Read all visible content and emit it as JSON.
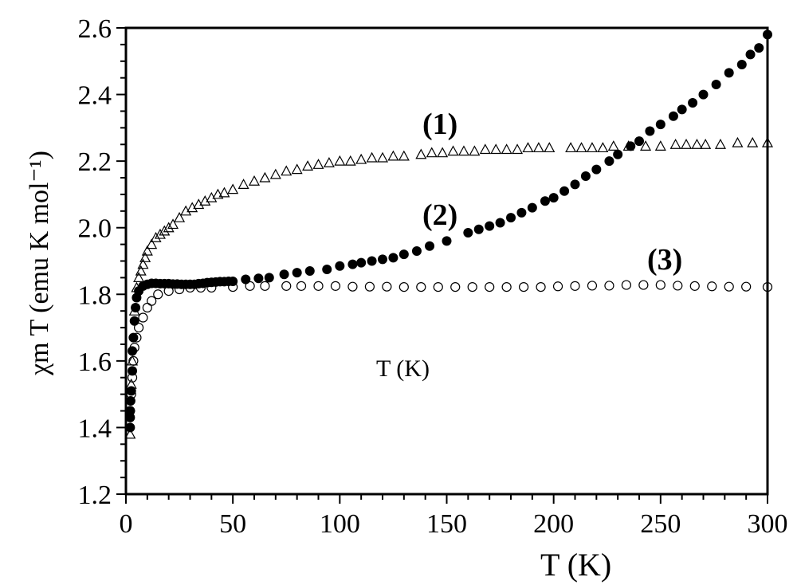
{
  "chart_data": {
    "type": "scatter",
    "title": "",
    "xlabel": "T (K)",
    "ylabel": "χm T (emu K mol⁻¹)",
    "xlim": [
      0,
      300
    ],
    "ylim": [
      1.2,
      2.6
    ],
    "xticks": [
      0,
      50,
      100,
      150,
      200,
      250,
      300
    ],
    "yticks": [
      1.2,
      1.4,
      1.6,
      1.8,
      2.0,
      2.2,
      2.4,
      2.6
    ],
    "ytick_labels": [
      "1.2",
      "1.4",
      "1.6",
      "1.8",
      "2.0",
      "2.2",
      "2.4",
      "2.6"
    ],
    "grid": false,
    "annotations": [
      {
        "text": "(1)",
        "series": "1"
      },
      {
        "text": "(2)",
        "series": "2"
      },
      {
        "text": "(3)",
        "series": "3"
      },
      {
        "text": "T (K)",
        "series": "stray"
      }
    ],
    "series": [
      {
        "name": "(1)",
        "marker": "open-triangle",
        "points": [
          [
            2,
            1.38
          ],
          [
            2.5,
            1.53
          ],
          [
            3,
            1.6
          ],
          [
            4,
            1.75
          ],
          [
            5,
            1.82
          ],
          [
            6,
            1.85
          ],
          [
            7,
            1.87
          ],
          [
            8,
            1.89
          ],
          [
            9,
            1.91
          ],
          [
            10,
            1.93
          ],
          [
            12,
            1.95
          ],
          [
            14,
            1.97
          ],
          [
            16,
            1.98
          ],
          [
            18,
            1.99
          ],
          [
            20,
            2.0
          ],
          [
            22,
            2.01
          ],
          [
            25,
            2.03
          ],
          [
            28,
            2.05
          ],
          [
            31,
            2.06
          ],
          [
            34,
            2.07
          ],
          [
            37,
            2.08
          ],
          [
            40,
            2.09
          ],
          [
            43,
            2.1
          ],
          [
            46,
            2.105
          ],
          [
            50,
            2.115
          ],
          [
            55,
            2.13
          ],
          [
            60,
            2.14
          ],
          [
            65,
            2.15
          ],
          [
            70,
            2.16
          ],
          [
            75,
            2.17
          ],
          [
            80,
            2.175
          ],
          [
            85,
            2.185
          ],
          [
            90,
            2.19
          ],
          [
            95,
            2.195
          ],
          [
            100,
            2.2
          ],
          [
            105,
            2.2
          ],
          [
            110,
            2.205
          ],
          [
            115,
            2.21
          ],
          [
            120,
            2.21
          ],
          [
            125,
            2.215
          ],
          [
            130,
            2.215
          ],
          [
            138,
            2.22
          ],
          [
            143,
            2.225
          ],
          [
            148,
            2.225
          ],
          [
            153,
            2.23
          ],
          [
            158,
            2.23
          ],
          [
            163,
            2.23
          ],
          [
            168,
            2.235
          ],
          [
            173,
            2.235
          ],
          [
            178,
            2.235
          ],
          [
            183,
            2.235
          ],
          [
            188,
            2.24
          ],
          [
            193,
            2.24
          ],
          [
            198,
            2.24
          ],
          [
            208,
            2.24
          ],
          [
            213,
            2.24
          ],
          [
            218,
            2.24
          ],
          [
            223,
            2.24
          ],
          [
            228,
            2.245
          ],
          [
            235,
            2.245
          ],
          [
            243,
            2.245
          ],
          [
            250,
            2.245
          ],
          [
            257,
            2.25
          ],
          [
            262,
            2.25
          ],
          [
            267,
            2.25
          ],
          [
            271,
            2.25
          ],
          [
            278,
            2.25
          ],
          [
            286,
            2.255
          ],
          [
            293,
            2.255
          ],
          [
            300,
            2.255
          ]
        ]
      },
      {
        "name": "(2)",
        "marker": "filled-circle",
        "points": [
          [
            2,
            1.4
          ],
          [
            2,
            1.43
          ],
          [
            2,
            1.45
          ],
          [
            2.2,
            1.48
          ],
          [
            2.5,
            1.51
          ],
          [
            3,
            1.57
          ],
          [
            3,
            1.63
          ],
          [
            3.5,
            1.67
          ],
          [
            4,
            1.72
          ],
          [
            4.5,
            1.76
          ],
          [
            5,
            1.79
          ],
          [
            6,
            1.81
          ],
          [
            8,
            1.825
          ],
          [
            10,
            1.83
          ],
          [
            12,
            1.833
          ],
          [
            14,
            1.833
          ],
          [
            16,
            1.832
          ],
          [
            18,
            1.832
          ],
          [
            20,
            1.832
          ],
          [
            22,
            1.831
          ],
          [
            24,
            1.831
          ],
          [
            26,
            1.83
          ],
          [
            28,
            1.83
          ],
          [
            30,
            1.83
          ],
          [
            32,
            1.83
          ],
          [
            34,
            1.832
          ],
          [
            36,
            1.833
          ],
          [
            38,
            1.835
          ],
          [
            40,
            1.836
          ],
          [
            42,
            1.837
          ],
          [
            44,
            1.838
          ],
          [
            46,
            1.838
          ],
          [
            48,
            1.839
          ],
          [
            50,
            1.839
          ],
          [
            56,
            1.845
          ],
          [
            62,
            1.848
          ],
          [
            67,
            1.85
          ],
          [
            74,
            1.86
          ],
          [
            80,
            1.865
          ],
          [
            86,
            1.87
          ],
          [
            94,
            1.875
          ],
          [
            100,
            1.885
          ],
          [
            106,
            1.89
          ],
          [
            110,
            1.895
          ],
          [
            115,
            1.9
          ],
          [
            120,
            1.905
          ],
          [
            125,
            1.91
          ],
          [
            130,
            1.92
          ],
          [
            136,
            1.93
          ],
          [
            142,
            1.945
          ],
          [
            150,
            1.96
          ],
          [
            160,
            1.985
          ],
          [
            165,
            1.995
          ],
          [
            170,
            2.005
          ],
          [
            175,
            2.015
          ],
          [
            180,
            2.03
          ],
          [
            185,
            2.045
          ],
          [
            190,
            2.06
          ],
          [
            196,
            2.08
          ],
          [
            200,
            2.09
          ],
          [
            205,
            2.11
          ],
          [
            210,
            2.13
          ],
          [
            215,
            2.155
          ],
          [
            220,
            2.175
          ],
          [
            226,
            2.2
          ],
          [
            230,
            2.22
          ],
          [
            236,
            2.245
          ],
          [
            240,
            2.26
          ],
          [
            245,
            2.29
          ],
          [
            250,
            2.31
          ],
          [
            256,
            2.335
          ],
          [
            260,
            2.355
          ],
          [
            265,
            2.375
          ],
          [
            270,
            2.4
          ],
          [
            276,
            2.43
          ],
          [
            282,
            2.465
          ],
          [
            288,
            2.49
          ],
          [
            292,
            2.52
          ],
          [
            296,
            2.54
          ],
          [
            300,
            2.58
          ]
        ]
      },
      {
        "name": "(3)",
        "marker": "open-circle",
        "points": [
          [
            2,
            1.45
          ],
          [
            2.5,
            1.5
          ],
          [
            3,
            1.55
          ],
          [
            3.5,
            1.6
          ],
          [
            4,
            1.64
          ],
          [
            5,
            1.67
          ],
          [
            6,
            1.7
          ],
          [
            8,
            1.73
          ],
          [
            10,
            1.76
          ],
          [
            12,
            1.78
          ],
          [
            15,
            1.8
          ],
          [
            20,
            1.81
          ],
          [
            25,
            1.815
          ],
          [
            30,
            1.82
          ],
          [
            35,
            1.82
          ],
          [
            40,
            1.82
          ],
          [
            50,
            1.822
          ],
          [
            58,
            1.825
          ],
          [
            65,
            1.825
          ],
          [
            75,
            1.825
          ],
          [
            82,
            1.825
          ],
          [
            90,
            1.825
          ],
          [
            98,
            1.825
          ],
          [
            106,
            1.823
          ],
          [
            114,
            1.823
          ],
          [
            122,
            1.823
          ],
          [
            130,
            1.822
          ],
          [
            138,
            1.822
          ],
          [
            146,
            1.822
          ],
          [
            154,
            1.822
          ],
          [
            162,
            1.822
          ],
          [
            170,
            1.822
          ],
          [
            178,
            1.822
          ],
          [
            186,
            1.822
          ],
          [
            194,
            1.822
          ],
          [
            202,
            1.824
          ],
          [
            210,
            1.825
          ],
          [
            218,
            1.826
          ],
          [
            226,
            1.826
          ],
          [
            234,
            1.828
          ],
          [
            242,
            1.828
          ],
          [
            250,
            1.828
          ],
          [
            258,
            1.826
          ],
          [
            266,
            1.825
          ],
          [
            274,
            1.824
          ],
          [
            282,
            1.823
          ],
          [
            290,
            1.823
          ],
          [
            300,
            1.822
          ]
        ]
      }
    ]
  }
}
